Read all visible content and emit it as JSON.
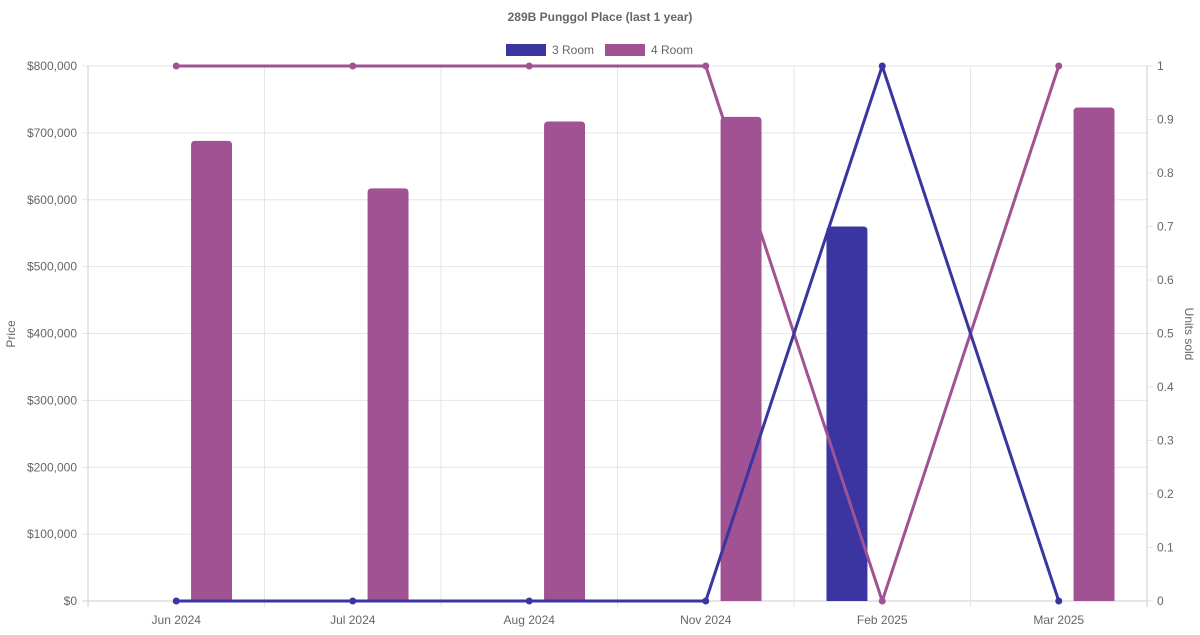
{
  "chart_data": {
    "type": "bar",
    "title": "289B Punggol Place (last 1 year)",
    "categories": [
      "Jun 2024",
      "Jul 2024",
      "Aug 2024",
      "Nov 2024",
      "Feb 2025",
      "Mar 2025"
    ],
    "y_left": {
      "label": "Price",
      "ylim": [
        0,
        800000
      ],
      "ticks": [
        "$0",
        "$100,000",
        "$200,000",
        "$300,000",
        "$400,000",
        "$500,000",
        "$600,000",
        "$700,000",
        "$800,000"
      ]
    },
    "y_right": {
      "label": "Units sold",
      "ylim": [
        0,
        1
      ],
      "ticks": [
        "0",
        "0.1",
        "0.2",
        "0.3",
        "0.4",
        "0.5",
        "0.6",
        "0.7",
        "0.8",
        "0.9",
        "1"
      ]
    },
    "legend": {
      "placement": "top-center"
    },
    "grid": true,
    "series": [
      {
        "name": "3 Room",
        "color": "#3a35a0",
        "price": [
          null,
          null,
          null,
          null,
          560000,
          null
        ],
        "units_sold": [
          0,
          0,
          0,
          0,
          1,
          0
        ]
      },
      {
        "name": "4 Room",
        "color": "#a05293",
        "price": [
          688000,
          617000,
          717000,
          724000,
          null,
          738000
        ],
        "units_sold": [
          1,
          1,
          1,
          1,
          0,
          1
        ]
      }
    ]
  }
}
